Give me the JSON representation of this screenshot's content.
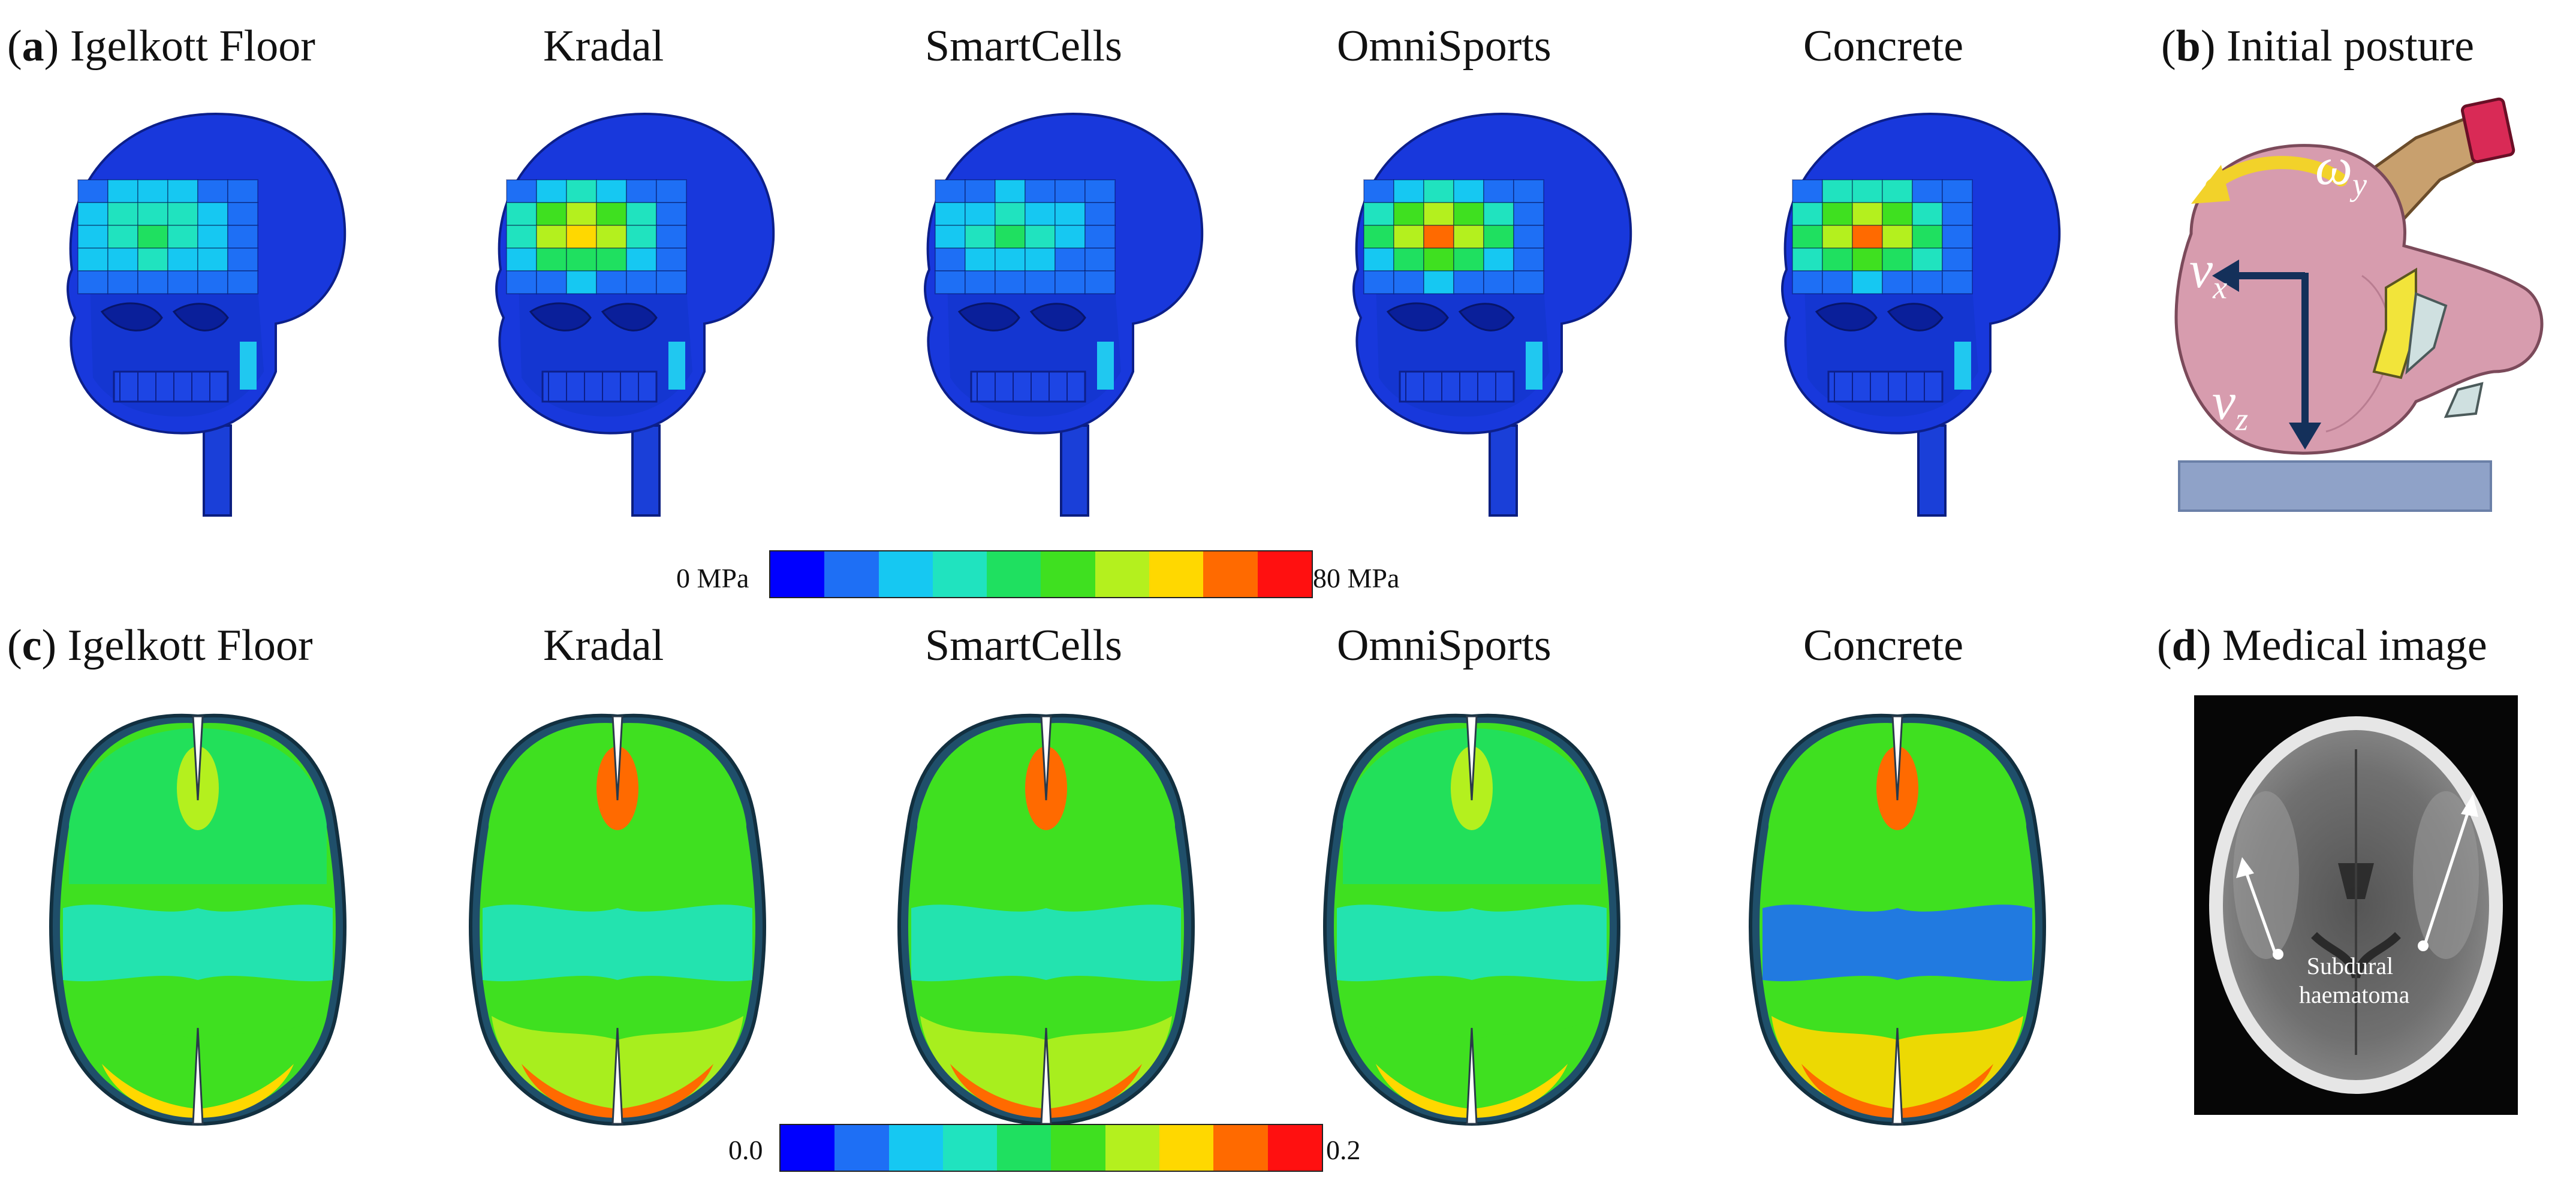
{
  "figure": {
    "row1": {
      "panel_letter": "a",
      "labels": [
        "Igelkott Floor",
        "Kradal",
        "SmartCells",
        "OmniSports",
        "Concrete"
      ],
      "hotspot_levels": [
        0.45,
        0.85,
        0.35,
        0.92,
        1.0
      ]
    },
    "panel_b": {
      "panel_letter": "b",
      "title": "Initial posture",
      "omega": "ω",
      "omega_sub": "y",
      "vx": "v",
      "vx_sub": "x",
      "vz": "v",
      "vz_sub": "z"
    },
    "colorbar1": {
      "min_label": "0 MPa",
      "max_label": "80 MPa",
      "colors": [
        "#0000ff",
        "#1e6ff5",
        "#16c8f2",
        "#20e3bf",
        "#1fe060",
        "#3fe020",
        "#b4f01e",
        "#ffd800",
        "#ff6a00",
        "#ff1010"
      ]
    },
    "row2": {
      "panel_letter": "c",
      "labels": [
        "Igelkott Floor",
        "Kradal",
        "SmartCells",
        "OmniSports",
        "Concrete"
      ],
      "strain_levels": [
        0.45,
        0.75,
        0.72,
        0.47,
        0.85
      ]
    },
    "panel_d": {
      "panel_letter": "d",
      "title": "Medical image",
      "annotation_line1": "Subdural",
      "annotation_line2": "haematoma"
    },
    "colorbar2": {
      "min_label": "0.0",
      "max_label": "0.2",
      "colors": [
        "#0000ff",
        "#1e6ff5",
        "#16c8f2",
        "#20e3bf",
        "#1fe060",
        "#3fe020",
        "#b4f01e",
        "#ffd800",
        "#ff6a00",
        "#ff1010"
      ]
    }
  }
}
